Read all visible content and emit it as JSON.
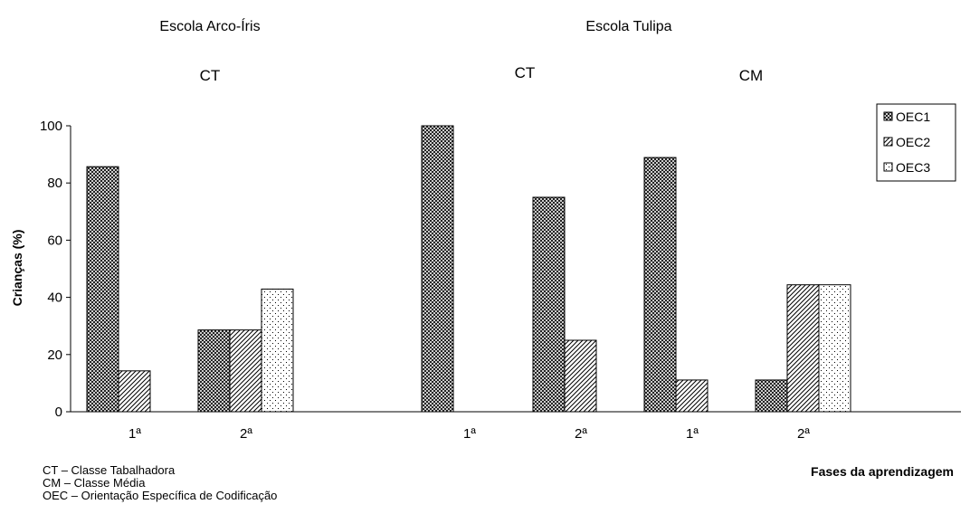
{
  "chart_data": {
    "type": "bar",
    "ylabel": "Crianças (%)",
    "xlabel": "Fases da aprendizagem",
    "ylim": [
      0,
      100
    ],
    "yticks": [
      0,
      20,
      40,
      60,
      80,
      100
    ],
    "grid": false,
    "legend_position": "right",
    "series": [
      {
        "name": "OEC1",
        "pattern": "crosshatch"
      },
      {
        "name": "OEC2",
        "pattern": "diagonal"
      },
      {
        "name": "OEC3",
        "pattern": "dots"
      }
    ],
    "schools": [
      {
        "name": "Escola Arco-Íris"
      },
      {
        "name": "Escola Tulipa"
      }
    ],
    "classes": [
      {
        "label": "CT"
      },
      {
        "label": "CT"
      },
      {
        "label": "CM"
      }
    ],
    "groups": [
      {
        "category": "1ª",
        "values": [
          85.7,
          14.3,
          0
        ]
      },
      {
        "category": "2ª",
        "values": [
          28.6,
          28.6,
          42.9
        ]
      },
      {
        "category": "1ª",
        "values": [
          100,
          0,
          0
        ]
      },
      {
        "category": "2ª",
        "values": [
          75,
          25,
          0
        ]
      },
      {
        "category": "1ª",
        "values": [
          88.9,
          11.1,
          0
        ]
      },
      {
        "category": "2ª",
        "values": [
          11.1,
          44.4,
          44.4
        ]
      }
    ]
  },
  "notes": [
    "CT – Classe Tabalhadora",
    "CM – Classe Média",
    "OEC – Orientação Específica de Codificação"
  ],
  "colors": {
    "axis": "#000000",
    "background": "#ffffff"
  }
}
